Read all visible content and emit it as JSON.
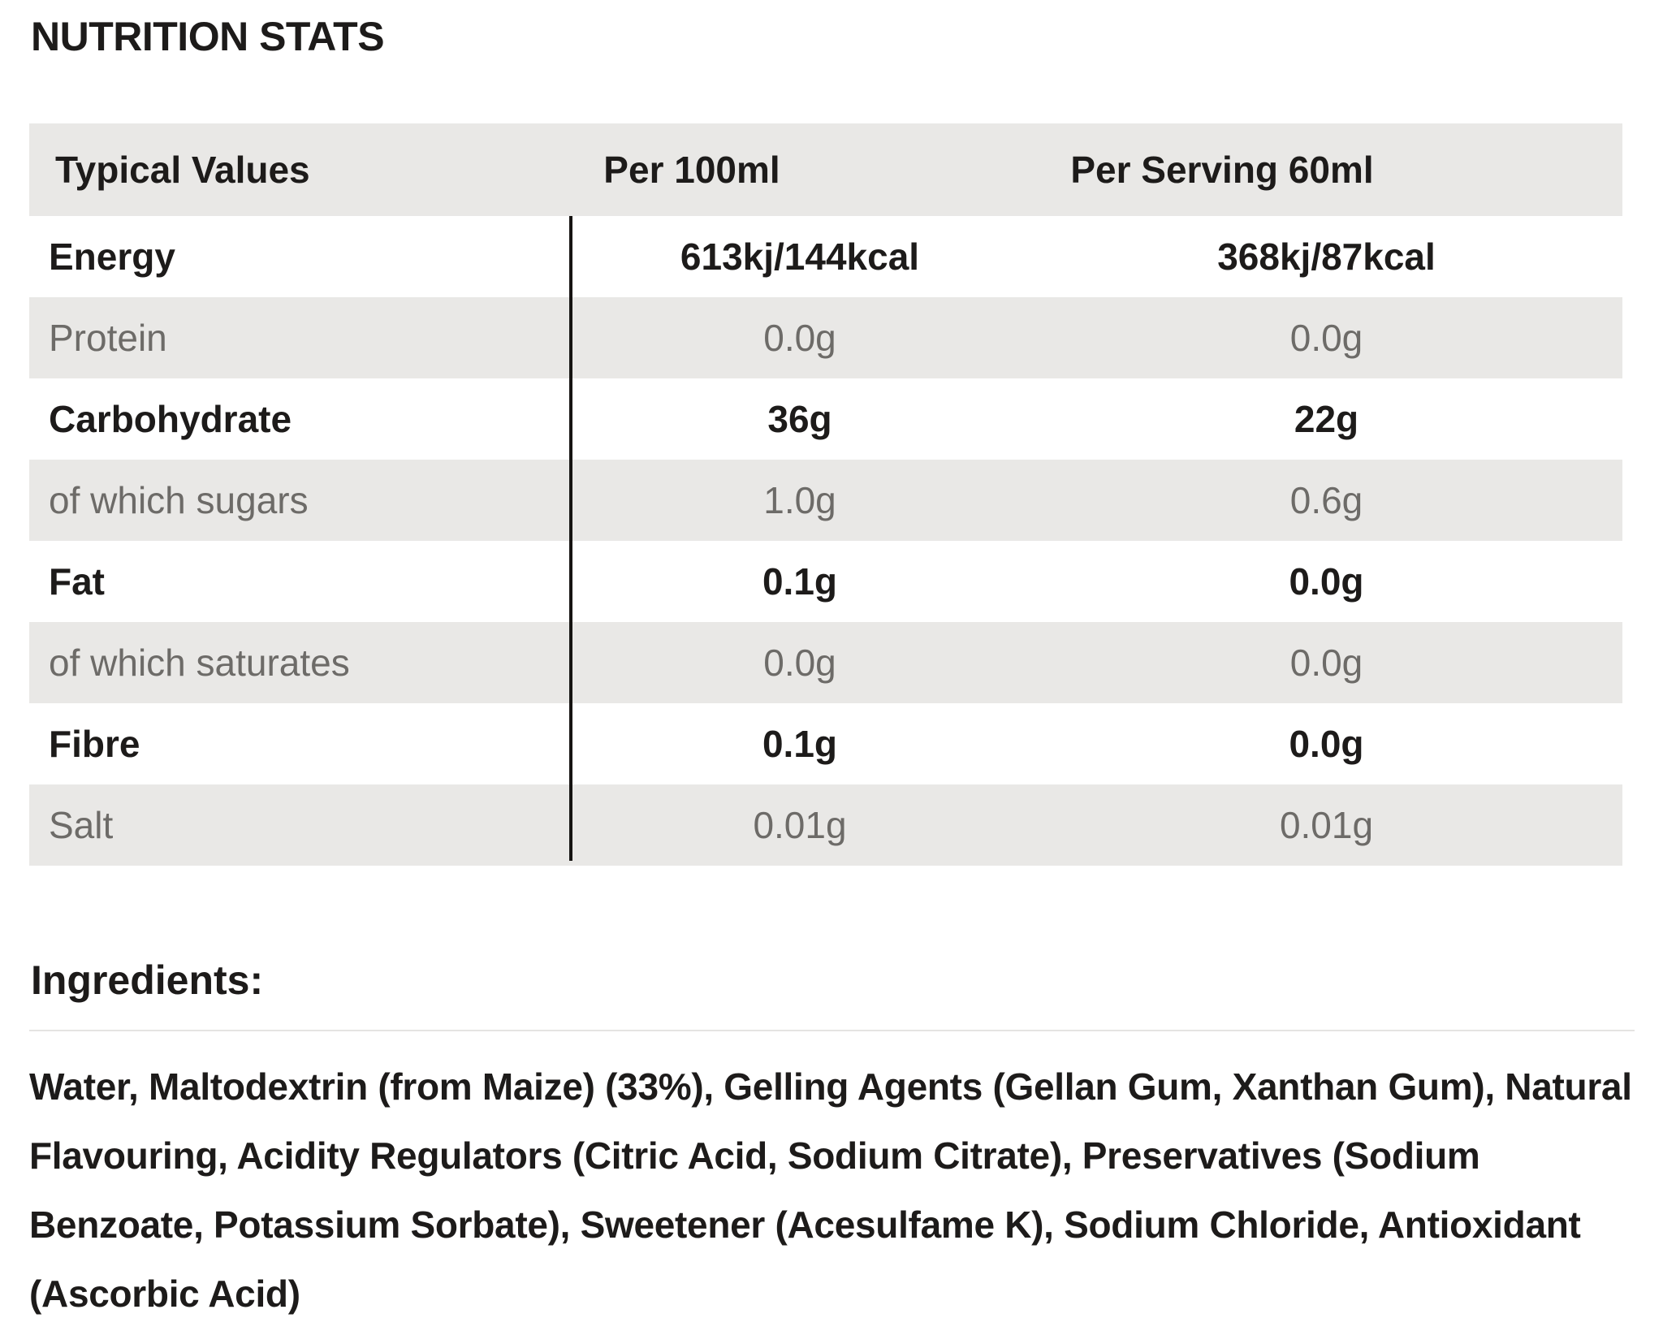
{
  "title": "NUTRITION STATS",
  "table": {
    "headers": [
      "Typical Values",
      "Per 100ml",
      "Per Serving 60ml"
    ],
    "rows": [
      {
        "label": "Energy",
        "per_100ml": "613kj/144kcal",
        "per_serving": "368kj/87kcal"
      },
      {
        "label": "Protein",
        "per_100ml": "0.0g",
        "per_serving": "0.0g"
      },
      {
        "label": "Carbohydrate",
        "per_100ml": "36g",
        "per_serving": "22g"
      },
      {
        "label": "of which sugars",
        "per_100ml": "1.0g",
        "per_serving": "0.6g"
      },
      {
        "label": "Fat",
        "per_100ml": "0.1g",
        "per_serving": "0.0g"
      },
      {
        "label": "of which saturates",
        "per_100ml": "0.0g",
        "per_serving": "0.0g"
      },
      {
        "label": "Fibre",
        "per_100ml": "0.1g",
        "per_serving": "0.0g"
      },
      {
        "label": "Salt",
        "per_100ml": "0.01g",
        "per_serving": "0.01g"
      }
    ]
  },
  "ingredients": {
    "heading": "Ingredients:",
    "text": "Water, Maltodextrin (from Maize) (33%), Gelling Agents (Gellan Gum, Xanthan Gum), Natural Flavouring, Acidity Regulators (Citric Acid, Sodium Citrate), Preservatives (Sodium Benzoate, Potassium Sorbate), Sweetener (Acesulfame K), Sodium Chloride, Antioxidant (Ascorbic Acid)"
  },
  "colors": {
    "row_band": "#e9e8e6",
    "text_dark": "#1d1b1a",
    "text_gray": "#6d6b68",
    "divider": "#e5e4e2",
    "vertical_rule": "#161412"
  }
}
